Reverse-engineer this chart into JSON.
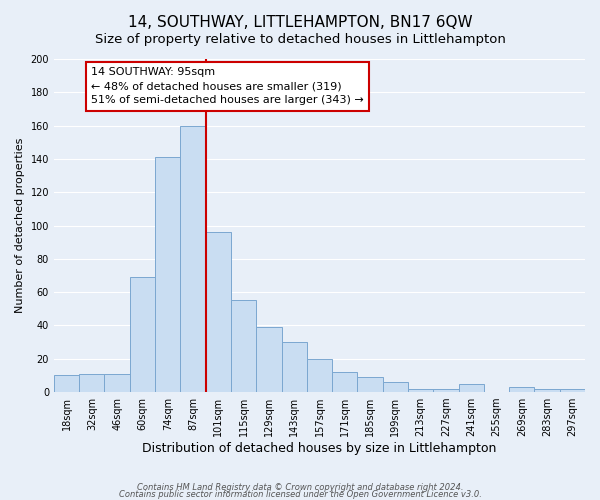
{
  "title": "14, SOUTHWAY, LITTLEHAMPTON, BN17 6QW",
  "subtitle": "Size of property relative to detached houses in Littlehampton",
  "xlabel": "Distribution of detached houses by size in Littlehampton",
  "ylabel": "Number of detached properties",
  "footer_line1": "Contains HM Land Registry data © Crown copyright and database right 2024.",
  "footer_line2": "Contains public sector information licensed under the Open Government Licence v3.0.",
  "bar_labels": [
    "18sqm",
    "32sqm",
    "46sqm",
    "60sqm",
    "74sqm",
    "87sqm",
    "101sqm",
    "115sqm",
    "129sqm",
    "143sqm",
    "157sqm",
    "171sqm",
    "185sqm",
    "199sqm",
    "213sqm",
    "227sqm",
    "241sqm",
    "255sqm",
    "269sqm",
    "283sqm",
    "297sqm"
  ],
  "bar_values": [
    10,
    11,
    11,
    69,
    141,
    160,
    96,
    55,
    39,
    30,
    20,
    12,
    9,
    6,
    2,
    2,
    5,
    0,
    3,
    2,
    2
  ],
  "bar_color": "#c9ddf2",
  "bar_edge_color": "#7ba7d0",
  "vline_x": 5.5,
  "vline_color": "#cc0000",
  "annotation_text": "14 SOUTHWAY: 95sqm\n← 48% of detached houses are smaller (319)\n51% of semi-detached houses are larger (343) →",
  "annotation_box_color": "white",
  "annotation_box_edge_color": "#cc0000",
  "ylim": [
    0,
    200
  ],
  "yticks": [
    0,
    20,
    40,
    60,
    80,
    100,
    120,
    140,
    160,
    180,
    200
  ],
  "background_color": "#e8eff8",
  "grid_color": "#ffffff",
  "title_fontsize": 11,
  "subtitle_fontsize": 9.5,
  "xlabel_fontsize": 9,
  "ylabel_fontsize": 8,
  "tick_fontsize": 7,
  "annotation_fontsize": 8
}
